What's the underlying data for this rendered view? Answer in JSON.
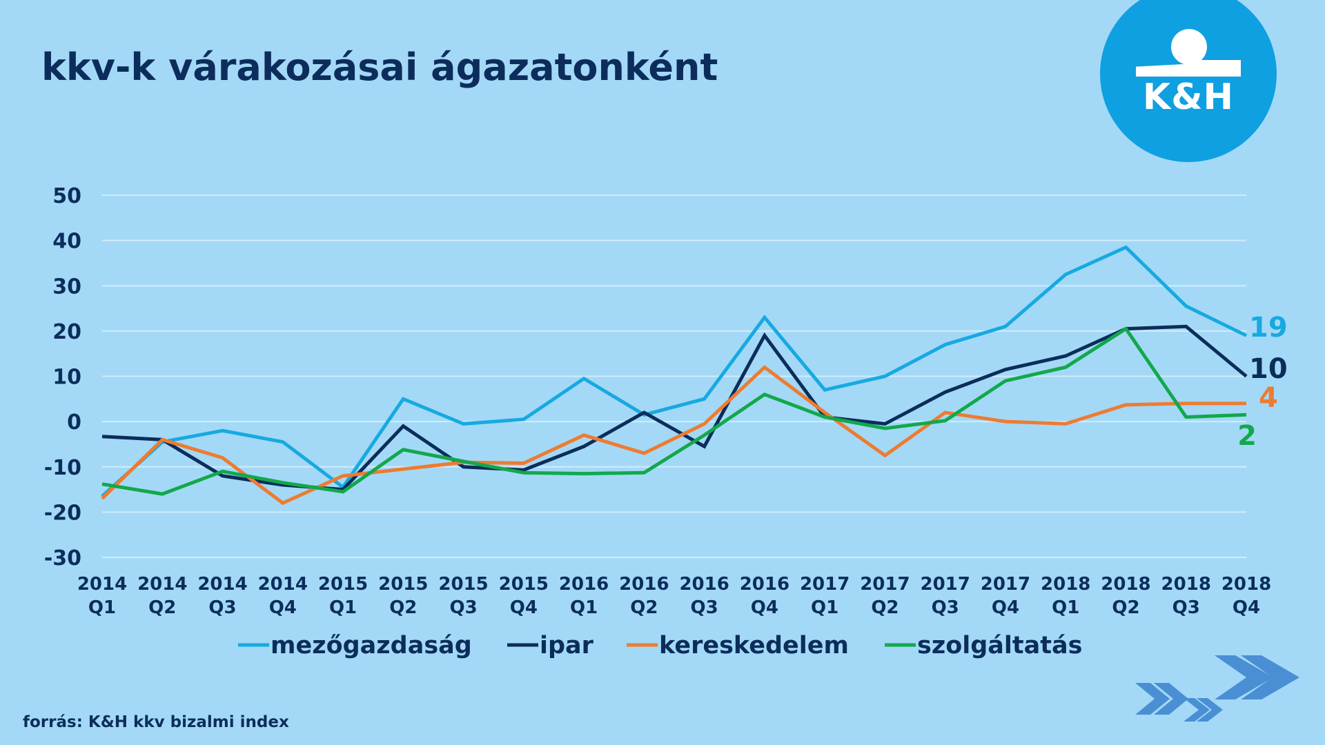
{
  "title": "kkv-k várakozásai ágazatonként",
  "logo": {
    "text": "K&H"
  },
  "source": "forrás: K&H kkv bizalmi index",
  "chart_data": {
    "type": "line",
    "title": "kkv-k várakozásai ágazatonként",
    "xlabel": "",
    "ylabel": "",
    "ylim": [
      -30,
      50
    ],
    "yticks": [
      50,
      40,
      30,
      20,
      10,
      0,
      -10,
      -20,
      -30
    ],
    "grid": true,
    "legend": "bottom",
    "categories": [
      [
        "2014",
        "Q1"
      ],
      [
        "2014",
        "Q2"
      ],
      [
        "2014",
        "Q3"
      ],
      [
        "2014",
        "Q4"
      ],
      [
        "2015",
        "Q1"
      ],
      [
        "2015",
        "Q2"
      ],
      [
        "2015",
        "Q3"
      ],
      [
        "2015",
        "Q4"
      ],
      [
        "2016",
        "Q1"
      ],
      [
        "2016",
        "Q2"
      ],
      [
        "2016",
        "Q3"
      ],
      [
        "2016",
        "Q4"
      ],
      [
        "2017",
        "Q1"
      ],
      [
        "2017",
        "Q2"
      ],
      [
        "2017",
        "Q3"
      ],
      [
        "2017",
        "Q4"
      ],
      [
        "2018",
        "Q1"
      ],
      [
        "2018",
        "Q2"
      ],
      [
        "2018",
        "Q3"
      ],
      [
        "2018",
        "Q4"
      ]
    ],
    "series": [
      {
        "name": "mezőgazdaság",
        "color": "#17a9e1",
        "end_label": "19",
        "values": [
          -16.5,
          -4.5,
          -2,
          -4.5,
          -14.5,
          5,
          -0.5,
          0.5,
          9.5,
          1.5,
          5,
          23,
          7,
          10,
          17,
          21,
          32.5,
          38.5,
          25.5,
          19
        ]
      },
      {
        "name": "ipar",
        "color": "#0b2d5b",
        "end_label": "10",
        "values": [
          -3.3,
          -4,
          -12,
          -14,
          -15,
          -1,
          -10,
          -10.7,
          -5.5,
          2,
          -5.5,
          19,
          1,
          -0.5,
          6.5,
          11.5,
          14.5,
          20.5,
          21,
          10
        ]
      },
      {
        "name": "kereskedelem",
        "color": "#ee7b30",
        "end_label": "4",
        "values": [
          -17,
          -4,
          -8,
          -18,
          -12,
          -10.5,
          -9,
          -9.2,
          -3,
          -7,
          -0.5,
          12,
          2,
          -7.5,
          2,
          0,
          -0.5,
          3.7,
          4,
          4
        ]
      },
      {
        "name": "szolgáltatás",
        "color": "#13a84b",
        "end_label": "2",
        "values": [
          -13.8,
          -16,
          -11,
          -13.5,
          -15.5,
          -6.2,
          -8.8,
          -11.3,
          -11.5,
          -11.3,
          -3,
          6,
          1,
          -1.5,
          0.2,
          9,
          12,
          20.5,
          1,
          1.5
        ]
      }
    ]
  }
}
